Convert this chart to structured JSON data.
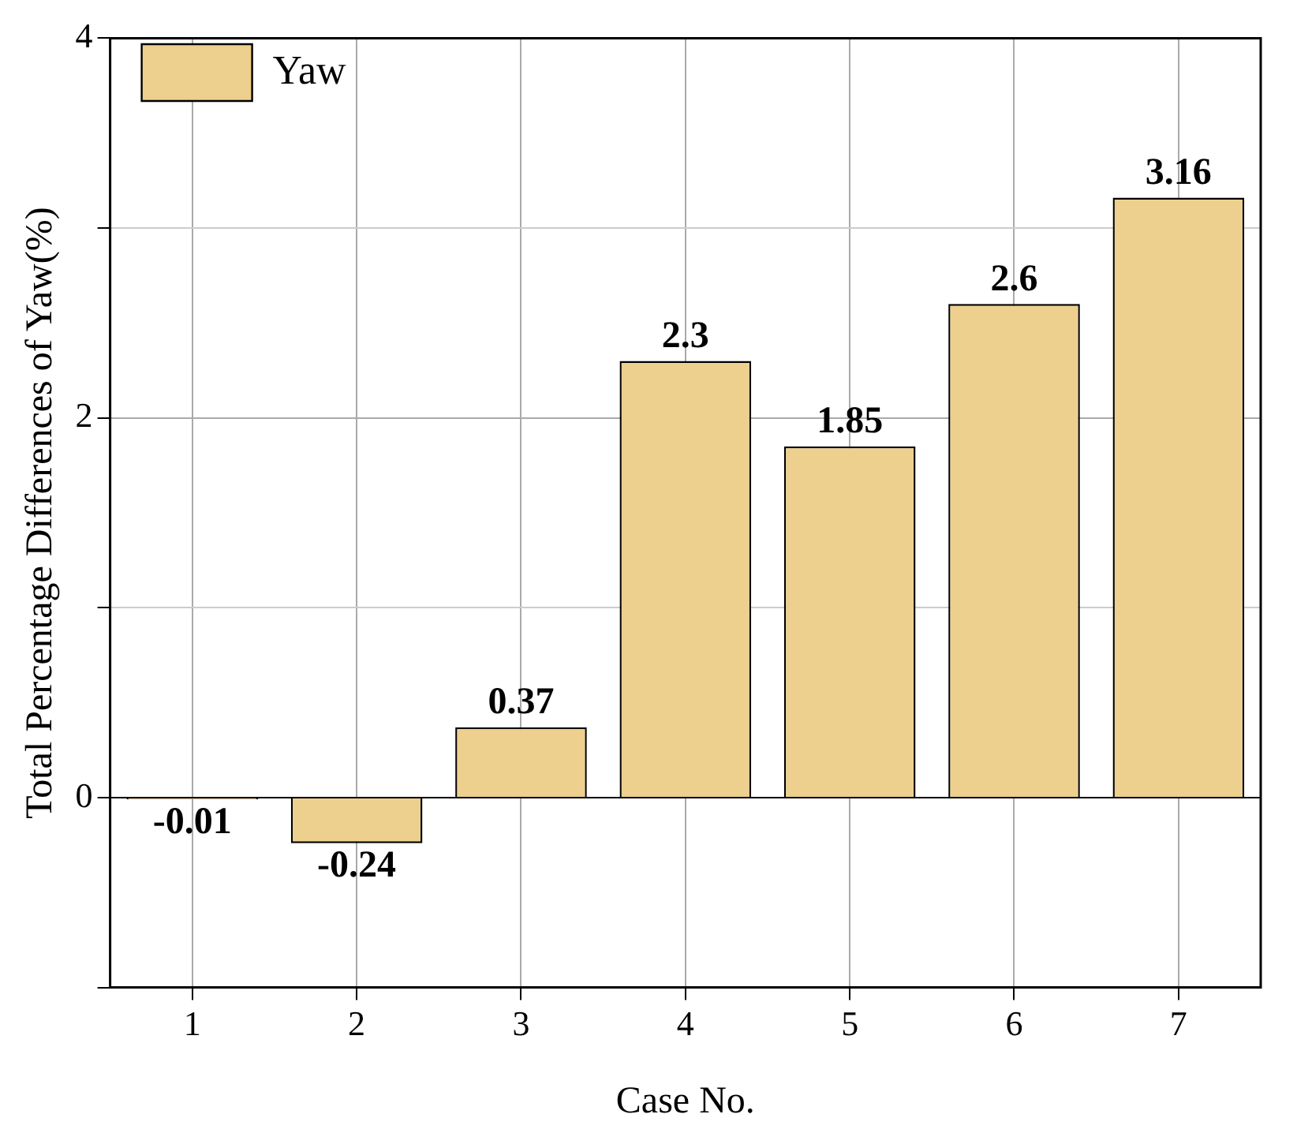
{
  "chart_data": {
    "type": "bar",
    "xlabel": "Case No.",
    "ylabel": "Total Percentage Differences of Yaw(%)",
    "categories": [
      "1",
      "2",
      "3",
      "4",
      "5",
      "6",
      "7"
    ],
    "series": [
      {
        "name": "Yaw",
        "color": "#edcf8e",
        "values": [
          -0.01,
          -0.24,
          0.37,
          2.3,
          1.85,
          2.6,
          3.16
        ]
      }
    ],
    "ylim": [
      -1,
      4
    ],
    "yticks": [
      {
        "value": -1,
        "label": null
      },
      0,
      {
        "value": 1,
        "label": null
      },
      2,
      {
        "value": 3,
        "label": null
      },
      4
    ],
    "grid": true,
    "legend": "top left",
    "data_labels": true
  }
}
